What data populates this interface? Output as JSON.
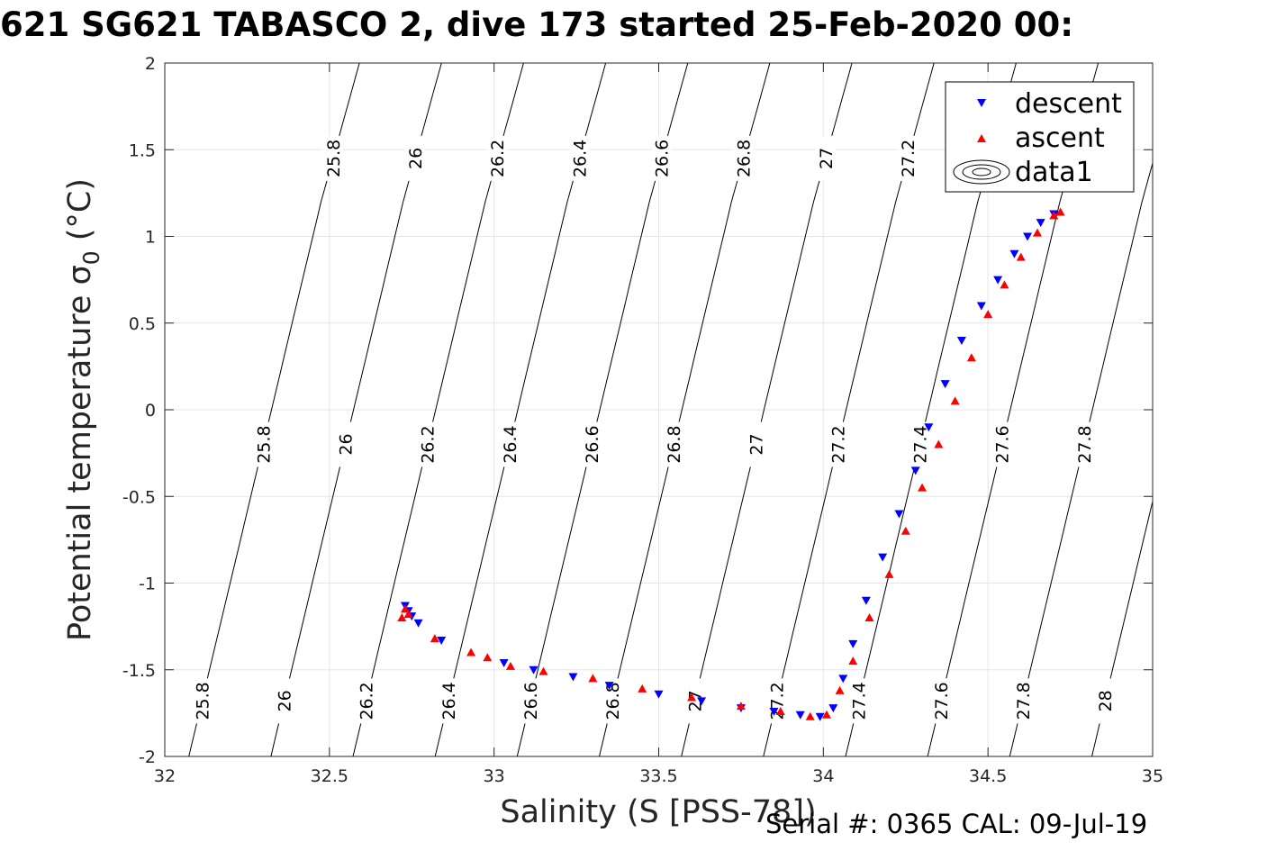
{
  "title": "621 SG621 TABASCO 2, dive 173 started 25-Feb-2020 00:",
  "footer": "Serial #: 0365  CAL: 09-Jul-19",
  "chart_data": {
    "type": "scatter",
    "title": "621 SG621 TABASCO 2, dive 173 started 25-Feb-2020 00:",
    "xlabel": "Salinity (S [PSS-78])",
    "ylabel": "Potential temperature σ0 (°C)",
    "xlim": [
      32,
      35
    ],
    "ylim": [
      -2,
      2
    ],
    "xticks": [
      32,
      32.5,
      33,
      33.5,
      34,
      34.5,
      35
    ],
    "yticks": [
      -2,
      -1.5,
      -1,
      -0.5,
      0,
      0.5,
      1,
      1.5,
      2
    ],
    "grid": true,
    "legend": {
      "position": "top-right",
      "entries": [
        "descent",
        "ascent",
        "data1"
      ]
    },
    "contour_levels": [
      25.8,
      26,
      26.2,
      26.4,
      26.6,
      26.8,
      27,
      27.2,
      27.4,
      27.6,
      27.8,
      28
    ],
    "series": [
      {
        "name": "descent",
        "color": "#0000ff",
        "marker": "triangle-down",
        "points": [
          [
            32.73,
            -1.13
          ],
          [
            32.74,
            -1.16
          ],
          [
            32.75,
            -1.19
          ],
          [
            32.77,
            -1.23
          ],
          [
            32.84,
            -1.33
          ],
          [
            33.03,
            -1.46
          ],
          [
            33.12,
            -1.5
          ],
          [
            33.24,
            -1.54
          ],
          [
            33.35,
            -1.59
          ],
          [
            33.5,
            -1.64
          ],
          [
            33.63,
            -1.68
          ],
          [
            33.75,
            -1.72
          ],
          [
            33.85,
            -1.74
          ],
          [
            33.93,
            -1.76
          ],
          [
            33.99,
            -1.77
          ],
          [
            34.03,
            -1.72
          ],
          [
            34.06,
            -1.55
          ],
          [
            34.09,
            -1.35
          ],
          [
            34.13,
            -1.1
          ],
          [
            34.18,
            -0.85
          ],
          [
            34.23,
            -0.6
          ],
          [
            34.28,
            -0.35
          ],
          [
            34.32,
            -0.1
          ],
          [
            34.37,
            0.15
          ],
          [
            34.42,
            0.4
          ],
          [
            34.48,
            0.6
          ],
          [
            34.53,
            0.75
          ],
          [
            34.58,
            0.9
          ],
          [
            34.62,
            1.0
          ],
          [
            34.66,
            1.08
          ],
          [
            34.7,
            1.13
          ]
        ]
      },
      {
        "name": "ascent",
        "color": "#ff0000",
        "marker": "triangle-up",
        "points": [
          [
            32.72,
            -1.2
          ],
          [
            32.73,
            -1.15
          ],
          [
            32.74,
            -1.18
          ],
          [
            32.82,
            -1.32
          ],
          [
            32.93,
            -1.4
          ],
          [
            32.98,
            -1.43
          ],
          [
            33.05,
            -1.48
          ],
          [
            33.15,
            -1.51
          ],
          [
            33.3,
            -1.55
          ],
          [
            33.45,
            -1.61
          ],
          [
            33.6,
            -1.66
          ],
          [
            33.75,
            -1.71
          ],
          [
            33.87,
            -1.74
          ],
          [
            33.96,
            -1.77
          ],
          [
            34.01,
            -1.76
          ],
          [
            34.05,
            -1.62
          ],
          [
            34.09,
            -1.45
          ],
          [
            34.14,
            -1.2
          ],
          [
            34.2,
            -0.95
          ],
          [
            34.25,
            -0.7
          ],
          [
            34.3,
            -0.45
          ],
          [
            34.35,
            -0.2
          ],
          [
            34.4,
            0.05
          ],
          [
            34.45,
            0.3
          ],
          [
            34.5,
            0.55
          ],
          [
            34.55,
            0.72
          ],
          [
            34.6,
            0.88
          ],
          [
            34.65,
            1.02
          ],
          [
            34.7,
            1.12
          ],
          [
            34.72,
            1.14
          ]
        ]
      }
    ],
    "colors": {
      "descent": "#0000ff",
      "ascent": "#ff0000",
      "contour": "#000000",
      "grid": "#e6e6e6",
      "axes": "#262626"
    }
  }
}
